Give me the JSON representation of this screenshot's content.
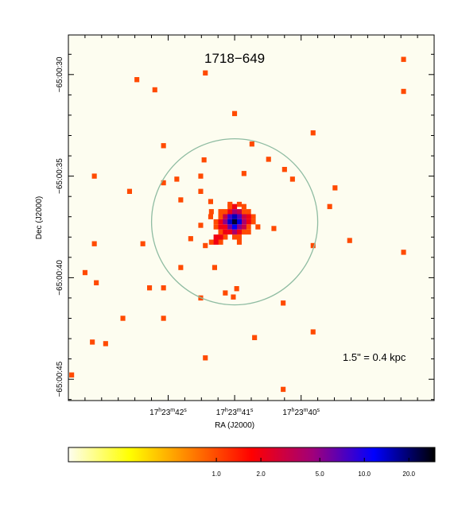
{
  "chart_data": {
    "type": "heatmap",
    "title": "1718−649",
    "annotation": "1.5\" = 0.4 kpc",
    "xlabel": "RA (J2000)",
    "ylabel": "Dec (J2000)",
    "x_axis": {
      "unit": "arcsec_of_RA",
      "range": [
        -2.5,
        3.0
      ],
      "major_ticks": [
        {
          "value": -1.0,
          "h": "17",
          "m": "23",
          "s": "42"
        },
        {
          "value": 0.0,
          "h": "17",
          "m": "23",
          "s": "41"
        },
        {
          "value": 1.0,
          "h": "17",
          "m": "23",
          "s": "40"
        }
      ]
    },
    "y_axis": {
      "unit": "arcsec_offset",
      "range": [
        -8.8,
        9.2
      ],
      "major_ticks": [
        {
          "value": 7.25,
          "label": "−65:00:30"
        },
        {
          "value": 2.25,
          "label": "−65:00:35"
        },
        {
          "value": -2.75,
          "label": "−65:00:40"
        },
        {
          "value": -7.75,
          "label": "−65:00:45"
        }
      ]
    },
    "circle": {
      "center": [
        0.0,
        0.0
      ],
      "radius_arcsec": 1.25,
      "color": "#8fbca2"
    },
    "background_color": "#fdfdf0",
    "colorbar": {
      "scale": "log",
      "range": [
        0.1,
        30
      ],
      "tick_labels": [
        "1.0",
        "2.0",
        "5.0",
        "10.0",
        "20.0"
      ],
      "tick_values": [
        1.0,
        2.0,
        5.0,
        10.0,
        20.0
      ],
      "colormap": [
        "#fdfdf0",
        "#ffff00",
        "#ff8000",
        "#ff0000",
        "#a0007a",
        "#0000ff",
        "#000000"
      ]
    },
    "counts": [
      {
        "x": 2.54,
        "y": 8.0,
        "v": 1
      },
      {
        "x": 2.54,
        "y": 6.42,
        "v": 1
      },
      {
        "x": 2.54,
        "y": -1.5,
        "v": 1
      },
      {
        "x": 1.18,
        "y": 4.38,
        "v": 1
      },
      {
        "x": 1.51,
        "y": 1.67,
        "v": 1
      },
      {
        "x": 1.43,
        "y": 0.75,
        "v": 1
      },
      {
        "x": 1.73,
        "y": -0.92,
        "v": 1
      },
      {
        "x": 1.18,
        "y": -1.17,
        "v": 1
      },
      {
        "x": 1.18,
        "y": -5.42,
        "v": 1
      },
      {
        "x": 0.51,
        "y": 3.08,
        "v": 1
      },
      {
        "x": 0.75,
        "y": 2.58,
        "v": 1
      },
      {
        "x": 0.26,
        "y": 3.83,
        "v": 1
      },
      {
        "x": 0.14,
        "y": 2.38,
        "v": 1
      },
      {
        "x": 0.0,
        "y": 5.33,
        "v": 1
      },
      {
        "x": 0.87,
        "y": 2.1,
        "v": 1
      },
      {
        "x": 0.59,
        "y": -0.33,
        "v": 1
      },
      {
        "x": 0.73,
        "y": -4.0,
        "v": 1
      },
      {
        "x": 0.73,
        "y": -8.25,
        "v": 1
      },
      {
        "x": 0.3,
        "y": -5.7,
        "v": 1
      },
      {
        "x": 0.03,
        "y": -3.29,
        "v": 1
      },
      {
        "x": -0.02,
        "y": -3.7,
        "v": 1
      },
      {
        "x": -0.14,
        "y": -3.5,
        "v": 1
      },
      {
        "x": -0.44,
        "y": 7.33,
        "v": 1
      },
      {
        "x": -0.51,
        "y": 2.25,
        "v": 1
      },
      {
        "x": -0.46,
        "y": 3.05,
        "v": 1
      },
      {
        "x": -0.51,
        "y": 1.5,
        "v": 1
      },
      {
        "x": -0.51,
        "y": -0.17,
        "v": 1
      },
      {
        "x": -0.44,
        "y": -6.7,
        "v": 1
      },
      {
        "x": -0.81,
        "y": 1.08,
        "v": 1
      },
      {
        "x": -0.36,
        "y": 1.0,
        "v": 1
      },
      {
        "x": -0.66,
        "y": -0.83,
        "v": 1
      },
      {
        "x": -0.44,
        "y": -1.17,
        "v": 1
      },
      {
        "x": -0.36,
        "y": 0.25,
        "v": 1
      },
      {
        "x": -1.07,
        "y": 3.75,
        "v": 1
      },
      {
        "x": -0.87,
        "y": 2.1,
        "v": 1
      },
      {
        "x": -1.07,
        "y": 1.92,
        "v": 1
      },
      {
        "x": -0.81,
        "y": -2.25,
        "v": 1
      },
      {
        "x": -0.3,
        "y": -2.25,
        "v": 1
      },
      {
        "x": -0.51,
        "y": -3.75,
        "v": 1
      },
      {
        "x": -1.07,
        "y": -4.75,
        "v": 1
      },
      {
        "x": -1.07,
        "y": -3.25,
        "v": 1
      },
      {
        "x": -1.2,
        "y": 6.5,
        "v": 1
      },
      {
        "x": -1.47,
        "y": 7.0,
        "v": 1
      },
      {
        "x": -1.58,
        "y": 1.5,
        "v": 1
      },
      {
        "x": -1.38,
        "y": -1.08,
        "v": 1
      },
      {
        "x": -1.28,
        "y": -3.25,
        "v": 1
      },
      {
        "x": -1.68,
        "y": -4.75,
        "v": 1
      },
      {
        "x": -1.94,
        "y": -6.0,
        "v": 1
      },
      {
        "x": -2.11,
        "y": 2.25,
        "v": 1
      },
      {
        "x": -2.14,
        "y": -5.92,
        "v": 1
      },
      {
        "x": -2.45,
        "y": -7.54,
        "v": 1
      },
      {
        "x": -2.11,
        "y": -1.08,
        "v": 1
      },
      {
        "x": -2.25,
        "y": -2.5,
        "v": 1
      },
      {
        "x": -2.08,
        "y": -3.0,
        "v": 1
      },
      {
        "x": 0.0,
        "y": 0.0,
        "v": 25
      },
      {
        "x": 0.0,
        "y": 0.25,
        "v": 15
      },
      {
        "x": 0.0,
        "y": -0.25,
        "v": 12
      },
      {
        "x": -0.07,
        "y": 0.0,
        "v": 14
      },
      {
        "x": 0.07,
        "y": 0.0,
        "v": 13
      },
      {
        "x": -0.07,
        "y": 0.25,
        "v": 8
      },
      {
        "x": 0.07,
        "y": 0.25,
        "v": 7
      },
      {
        "x": -0.07,
        "y": -0.25,
        "v": 6
      },
      {
        "x": 0.07,
        "y": -0.25,
        "v": 5
      },
      {
        "x": 0.0,
        "y": 0.5,
        "v": 4
      },
      {
        "x": 0.0,
        "y": -0.5,
        "v": 4
      },
      {
        "x": -0.14,
        "y": 0.0,
        "v": 5
      },
      {
        "x": 0.14,
        "y": 0.0,
        "v": 4
      },
      {
        "x": -0.14,
        "y": 0.25,
        "v": 3
      },
      {
        "x": 0.14,
        "y": 0.25,
        "v": 3
      },
      {
        "x": -0.14,
        "y": -0.25,
        "v": 2
      },
      {
        "x": 0.14,
        "y": -0.25,
        "v": 3
      },
      {
        "x": -0.07,
        "y": 0.5,
        "v": 2
      },
      {
        "x": 0.07,
        "y": 0.5,
        "v": 3
      },
      {
        "x": -0.07,
        "y": -0.5,
        "v": 2
      },
      {
        "x": 0.07,
        "y": -0.5,
        "v": 2
      },
      {
        "x": -0.21,
        "y": 0.0,
        "v": 2
      },
      {
        "x": 0.21,
        "y": 0.0,
        "v": 2
      },
      {
        "x": -0.21,
        "y": 0.25,
        "v": 1
      },
      {
        "x": 0.21,
        "y": 0.25,
        "v": 2
      },
      {
        "x": -0.21,
        "y": -0.25,
        "v": 2
      },
      {
        "x": 0.21,
        "y": -0.25,
        "v": 1
      },
      {
        "x": 0.0,
        "y": 0.75,
        "v": 2
      },
      {
        "x": 0.0,
        "y": -0.75,
        "v": 1
      },
      {
        "x": -0.14,
        "y": 0.5,
        "v": 1
      },
      {
        "x": 0.14,
        "y": 0.5,
        "v": 1
      },
      {
        "x": -0.14,
        "y": -0.5,
        "v": 2
      },
      {
        "x": 0.14,
        "y": -0.5,
        "v": 1
      },
      {
        "x": -0.28,
        "y": 0.0,
        "v": 1
      },
      {
        "x": 0.28,
        "y": 0.0,
        "v": 1
      },
      {
        "x": -0.28,
        "y": -0.25,
        "v": 1
      },
      {
        "x": 0.28,
        "y": 0.25,
        "v": 1
      },
      {
        "x": -0.07,
        "y": 0.75,
        "v": 1
      },
      {
        "x": 0.07,
        "y": -0.75,
        "v": 1
      },
      {
        "x": -0.21,
        "y": -0.5,
        "v": 1
      },
      {
        "x": 0.21,
        "y": 0.5,
        "v": 1
      },
      {
        "x": -0.21,
        "y": 0.5,
        "v": 1
      },
      {
        "x": 0.21,
        "y": -0.5,
        "v": 1
      },
      {
        "x": -0.14,
        "y": -0.75,
        "v": 1
      },
      {
        "x": 0.14,
        "y": 0.75,
        "v": 1
      },
      {
        "x": -0.28,
        "y": -0.75,
        "v": 2
      },
      {
        "x": -0.21,
        "y": -0.75,
        "v": 2
      },
      {
        "x": -0.28,
        "y": -1.0,
        "v": 2
      },
      {
        "x": -0.21,
        "y": -1.0,
        "v": 1
      },
      {
        "x": -0.35,
        "y": -1.0,
        "v": 1
      },
      {
        "x": 0.07,
        "y": -1.0,
        "v": 1
      },
      {
        "x": -0.07,
        "y": 0.86,
        "v": 1
      },
      {
        "x": 0.07,
        "y": 0.86,
        "v": 1
      },
      {
        "x": -0.35,
        "y": 0.5,
        "v": 1
      },
      {
        "x": 0.35,
        "y": -0.25,
        "v": 1
      }
    ]
  }
}
